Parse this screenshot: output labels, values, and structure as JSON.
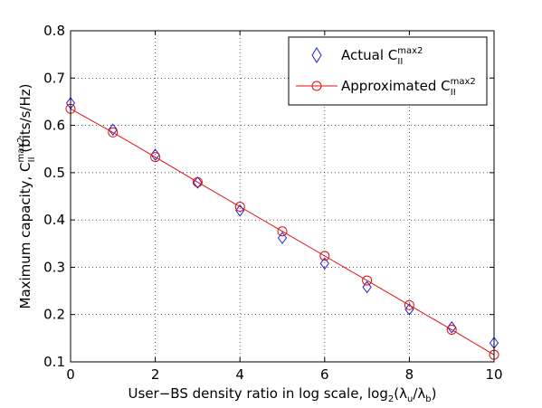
{
  "chart_data": {
    "type": "line",
    "title": "",
    "xlabel": {
      "main": "User−BS density ratio in log scale, log",
      "base": "2",
      "open": "(λ",
      "sub1": "u",
      "mid": "/λ",
      "sub2": "b",
      "close": ")"
    },
    "ylabel": {
      "main": "Maximum capacity, C",
      "sup": "max2",
      "sub": "II",
      "unit": " (bits/s/Hz)"
    },
    "xlim": [
      0,
      10
    ],
    "ylim": [
      0.1,
      0.8
    ],
    "xticks": [
      0,
      2,
      4,
      6,
      8,
      10
    ],
    "xtick_labels": [
      "0",
      "2",
      "4",
      "6",
      "8",
      "10"
    ],
    "yticks": [
      0.1,
      0.2,
      0.3,
      0.4,
      0.5,
      0.6,
      0.7,
      0.8
    ],
    "ytick_labels": [
      "0.1",
      "0.2",
      "0.3",
      "0.4",
      "0.5",
      "0.6",
      "0.7",
      "0.8"
    ],
    "grid": true,
    "legend_position": "top-right",
    "x": [
      0,
      1,
      2,
      3,
      4,
      5,
      6,
      7,
      8,
      9,
      10
    ],
    "series": [
      {
        "name": "Actual C",
        "name_sup": "max2",
        "name_sub": "II",
        "marker": "diamond",
        "line": false,
        "color": "#1f1fd6",
        "values": [
          0.647,
          0.591,
          0.538,
          0.479,
          0.42,
          0.362,
          0.308,
          0.258,
          0.211,
          0.173,
          0.14
        ]
      },
      {
        "name": "Approximated C",
        "name_sup": "max2",
        "name_sub": "II",
        "marker": "circle",
        "line": true,
        "color": "#e01010",
        "values": [
          0.635,
          0.585,
          0.533,
          0.48,
          0.428,
          0.376,
          0.324,
          0.272,
          0.22,
          0.168,
          0.115
        ]
      }
    ]
  }
}
